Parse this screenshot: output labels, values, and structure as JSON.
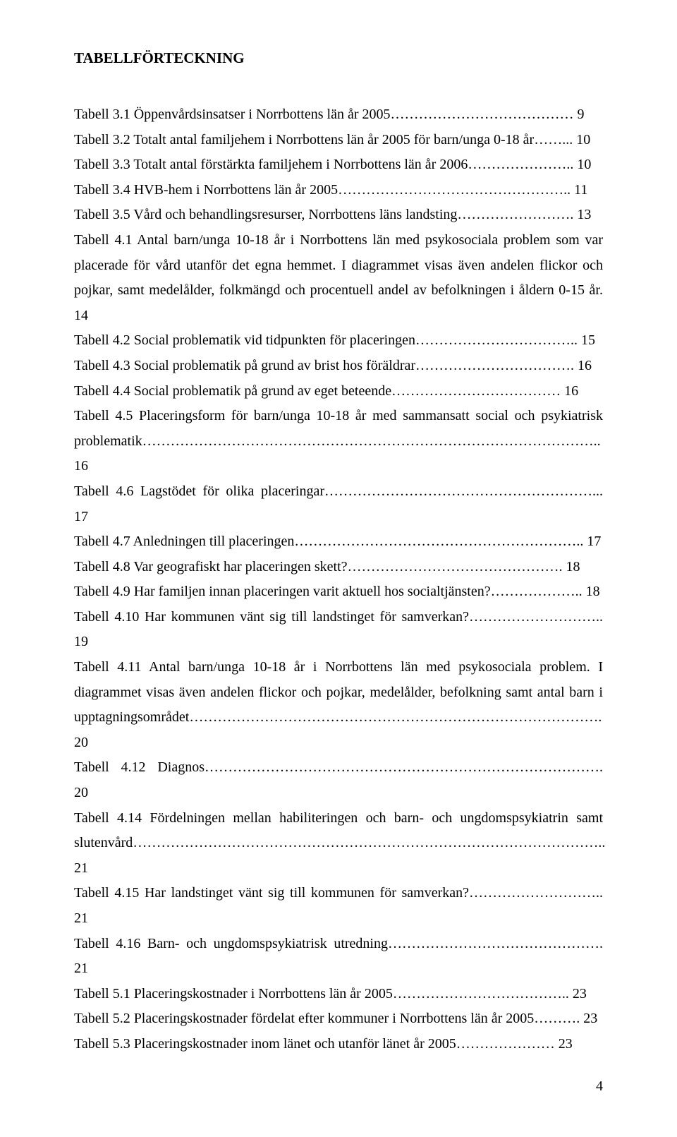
{
  "title": "TABELLFÖRTECKNING",
  "page_number": "4",
  "font": {
    "family": "Times New Roman",
    "title_size_pt": 16,
    "body_size_pt": 15,
    "title_weight": "bold"
  },
  "colors": {
    "text": "#000000",
    "background": "#ffffff"
  },
  "entries": [
    {
      "label": "Tabell 3.1 Öppenvårdsinsatser i Norrbottens län år 2005",
      "leader": "…………………………………",
      "page": "9"
    },
    {
      "label": "Tabell 3.2 Totalt antal familjehem i Norrbottens län år 2005 för barn/unga 0-18 år",
      "leader": "……...",
      "page": "10"
    },
    {
      "label": "Tabell 3.3 Totalt antal förstärkta familjehem i Norrbottens län år 2006",
      "leader": "…………………..",
      "page": "10"
    },
    {
      "label": "Tabell 3.4 HVB-hem i Norrbottens län år 2005",
      "leader": "…………………………………………..",
      "page": "11"
    },
    {
      "label": "Tabell 3.5 Vård och behandlingsresurser, Norrbottens läns landsting",
      "leader": "…………………….",
      "page": "13"
    },
    {
      "label": "Tabell 4.1 Antal barn/unga 10-18 år i Norrbottens län med psykosociala problem som var placerade för vård utanför det egna hemmet. I diagrammet visas även andelen flickor och pojkar, samt medelålder, folkmängd och procentuell andel av befolkningen i åldern 0-15 år.",
      "leader": "",
      "page": "14"
    },
    {
      "label": "Tabell 4.2 Social problematik vid tidpunkten för placeringen",
      "leader": "……………………………..",
      "page": "15"
    },
    {
      "label": "Tabell 4.3 Social problematik på grund av brist hos föräldrar",
      "leader": "…………………………….",
      "page": "16"
    },
    {
      "label": "Tabell 4.4 Social problematik på grund av eget beteende",
      "leader": "………………………………",
      "page": "16"
    },
    {
      "label": "Tabell 4.5 Placeringsform för barn/unga 10-18 år med sammansatt social och psykiatrisk problematik",
      "leader": "……………………………………………………………………………………..",
      "page": "16"
    },
    {
      "label": "Tabell 4.6 Lagstödet för olika placeringar",
      "leader": "…………………………………………………...",
      "page": "17"
    },
    {
      "label": "Tabell 4.7 Anledningen till placeringen",
      "leader": "……………………………………………………..",
      "page": "17"
    },
    {
      "label": "Tabell 4.8 Var geografiskt har placeringen skett?",
      "leader": "……………………………………….",
      "page": "18"
    },
    {
      "label": "Tabell 4.9 Har familjen innan placeringen varit aktuell hos socialtjänsten?",
      "leader": "………………..",
      "page": "18"
    },
    {
      "label": "Tabell 4.10 Har kommunen vänt sig till landstinget för samverkan?",
      "leader": "………………………..",
      "page": "19"
    },
    {
      "label": "Tabell 4.11 Antal barn/unga 10-18 år i Norrbottens län med psykosociala problem. I diagrammet visas även andelen flickor och pojkar, medelålder, befolkning samt antal barn i upptagningsområdet",
      "leader": "…………………………………………………………………………….",
      "page": "20"
    },
    {
      "label": "Tabell 4.12 Diagnos",
      "leader": "………………………………………………………………………….",
      "page": "20"
    },
    {
      "label": "Tabell 4.14 Fördelningen mellan habiliteringen och barn- och ungdomspsykiatrin samt slutenvård",
      "leader": "………………………………………………………………………………………..",
      "page": "21"
    },
    {
      "label": "Tabell 4.15 Har landstinget vänt sig till kommunen för samverkan?",
      "leader": "………………………..",
      "page": "21"
    },
    {
      "label": "Tabell 4.16 Barn- och ungdomspsykiatrisk utredning",
      "leader": "……………………………………….",
      "page": "21"
    },
    {
      "label": "Tabell 5.1 Placeringskostnader i Norrbottens län år 2005",
      "leader": "………………………………..",
      "page": "23"
    },
    {
      "label": "Tabell 5.2 Placeringskostnader fördelat efter kommuner i Norrbottens län år 2005",
      "leader": "……….",
      "page": "23"
    },
    {
      "label": "Tabell 5.3 Placeringskostnader inom länet och utanför länet år 2005",
      "leader": "…………………",
      "page": "23"
    }
  ]
}
